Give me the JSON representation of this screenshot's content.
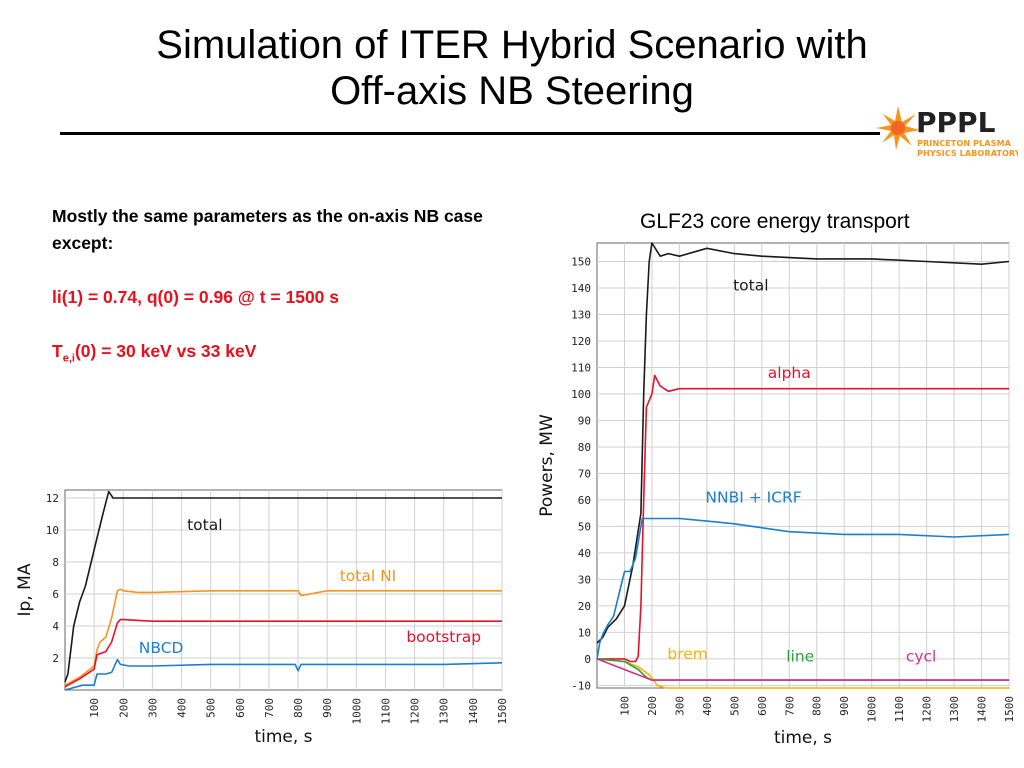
{
  "slide": {
    "title_line1": "Simulation of ITER Hybrid Scenario with",
    "title_line2": "Off-axis NB Steering",
    "logo": {
      "name": "PPPL",
      "line1": "PRINCETON PLASMA",
      "line2": "PHYSICS LABORATORY"
    },
    "notes": {
      "para1": "Mostly the same parameters as the on-axis NB case except:",
      "para2": "li(1) = 0.74, q(0) = 0.96 @ t = 1500 s",
      "para3_prefix": "T",
      "para3_sub": "e,i",
      "para3_rest": "(0) = 30 keV  vs 33 keV"
    },
    "right_chart_title": "GLF23 core energy transport"
  },
  "colors": {
    "black": "#1a1a1a",
    "orange": "#f7941d",
    "red": "#e8102a",
    "blue": "#1a7fd0",
    "yellow": "#f5b400",
    "green": "#2e9e3e",
    "magenta": "#d6308b",
    "text_red": "#e8101c"
  },
  "chart_data": [
    {
      "type": "line",
      "xlabel": "time, s",
      "ylabel": "Ip, MA",
      "xlim": [
        0,
        1500
      ],
      "ylim": [
        0,
        12.5
      ],
      "xticks": [
        "100",
        "200",
        "300",
        "400",
        "500",
        "600",
        "700",
        "800",
        "900",
        "1000",
        "1100",
        "1200",
        "1300",
        "1400",
        "1500"
      ],
      "yticks": [
        "2",
        "4",
        "6",
        "8",
        "10",
        "12"
      ],
      "grid": true,
      "series": [
        {
          "name": "total",
          "color_key": "black",
          "label_at": [
            480,
            10.0
          ],
          "x": [
            0,
            10,
            20,
            30,
            50,
            70,
            90,
            110,
            130,
            150,
            165,
            180,
            200,
            300,
            400,
            500,
            700,
            900,
            1100,
            1300,
            1500
          ],
          "y": [
            0.5,
            1.0,
            2.5,
            4.0,
            5.5,
            6.5,
            8.0,
            9.5,
            11.0,
            12.4,
            12.0,
            12.0,
            12.0,
            12.0,
            12.0,
            12.0,
            12.0,
            12.0,
            12.0,
            12.0,
            12.0
          ]
        },
        {
          "name": "total NI",
          "color_key": "orange",
          "label_at": [
            1040,
            6.8
          ],
          "x": [
            0,
            50,
            100,
            110,
            120,
            140,
            160,
            180,
            190,
            200,
            250,
            300,
            500,
            700,
            800,
            810,
            900,
            1100,
            1300,
            1500
          ],
          "y": [
            0.3,
            0.8,
            1.5,
            2.5,
            3.0,
            3.3,
            4.5,
            6.2,
            6.3,
            6.2,
            6.1,
            6.1,
            6.2,
            6.2,
            6.2,
            5.9,
            6.2,
            6.2,
            6.2,
            6.2
          ]
        },
        {
          "name": "bootstrap",
          "color_key": "red",
          "label_at": [
            1300,
            3.0
          ],
          "x": [
            0,
            50,
            100,
            110,
            140,
            160,
            180,
            190,
            200,
            300,
            500,
            700,
            900,
            1100,
            1300,
            1500
          ],
          "y": [
            0.2,
            0.7,
            1.3,
            2.2,
            2.4,
            3.0,
            4.2,
            4.4,
            4.4,
            4.3,
            4.3,
            4.3,
            4.3,
            4.3,
            4.3,
            4.3
          ]
        },
        {
          "name": "NBCD",
          "color_key": "blue",
          "label_at": [
            330,
            2.3
          ],
          "x": [
            0,
            60,
            100,
            110,
            140,
            160,
            180,
            190,
            220,
            300,
            500,
            700,
            790,
            800,
            810,
            900,
            1100,
            1300,
            1500
          ],
          "y": [
            0.0,
            0.3,
            0.3,
            1.0,
            1.0,
            1.1,
            1.9,
            1.6,
            1.5,
            1.5,
            1.6,
            1.6,
            1.6,
            1.2,
            1.6,
            1.6,
            1.6,
            1.6,
            1.7
          ]
        }
      ]
    },
    {
      "type": "line",
      "xlabel": "time, s",
      "ylabel": "Powers, MW",
      "xlim": [
        0,
        1500
      ],
      "ylim": [
        -11,
        157
      ],
      "xticks": [
        "100",
        "200",
        "300",
        "400",
        "500",
        "600",
        "700",
        "800",
        "900",
        "1000",
        "1100",
        "1200",
        "1300",
        "1400",
        "1500"
      ],
      "yticks": [
        "-10",
        "0",
        "10",
        "20",
        "30",
        "40",
        "50",
        "60",
        "70",
        "80",
        "90",
        "100",
        "110",
        "120",
        "130",
        "140",
        "150"
      ],
      "grid": true,
      "series": [
        {
          "name": "total",
          "color_key": "black",
          "label_at": [
            560,
            139
          ],
          "x": [
            0,
            20,
            40,
            70,
            100,
            130,
            160,
            170,
            180,
            190,
            200,
            230,
            260,
            300,
            400,
            500,
            600,
            800,
            1000,
            1200,
            1400,
            1500
          ],
          "y": [
            6,
            8,
            12,
            15,
            20,
            35,
            55,
            100,
            130,
            150,
            157,
            152,
            153,
            152,
            155,
            153,
            152,
            151,
            151,
            150,
            149,
            150
          ]
        },
        {
          "name": "alpha",
          "color_key": "red",
          "label_at": [
            700,
            106
          ],
          "x": [
            0,
            100,
            120,
            140,
            150,
            160,
            170,
            180,
            200,
            210,
            230,
            260,
            300,
            400,
            600,
            800,
            1000,
            1200,
            1400,
            1500
          ],
          "y": [
            0,
            0,
            -1,
            -1,
            1,
            20,
            60,
            95,
            100,
            107,
            103,
            101,
            102,
            102,
            102,
            102,
            102,
            102,
            102,
            102
          ]
        },
        {
          "name": "NNBI + ICRF",
          "color_key": "blue",
          "label_at": [
            570,
            59
          ],
          "x": [
            0,
            10,
            20,
            40,
            60,
            100,
            120,
            140,
            160,
            165,
            200,
            300,
            400,
            500,
            700,
            900,
            1100,
            1300,
            1500
          ],
          "y": [
            0,
            6,
            9,
            13,
            16,
            33,
            33,
            38,
            50,
            53,
            53,
            53,
            52,
            51,
            48,
            47,
            47,
            46,
            47
          ]
        },
        {
          "name": "brem",
          "color_key": "yellow",
          "label_at": [
            330,
            0
          ],
          "x": [
            0,
            100,
            150,
            190,
            220,
            250,
            400,
            800,
            1200,
            1500
          ],
          "y": [
            0,
            -1,
            -3,
            -6,
            -10,
            -11,
            -11,
            -11,
            -11,
            -11
          ]
        },
        {
          "name": "line",
          "color_key": "green",
          "label_at": [
            740,
            -1
          ],
          "x": [
            0,
            100,
            150,
            180,
            200,
            300,
            600,
            1000,
            1500
          ],
          "y": [
            0,
            -1,
            -4,
            -7,
            -8,
            -8,
            -8,
            -8,
            -8
          ]
        },
        {
          "name": "cycl",
          "color_key": "magenta",
          "label_at": [
            1180,
            -1
          ],
          "x": [
            0,
            200,
            300,
            600,
            1000,
            1500
          ],
          "y": [
            0,
            -8,
            -8,
            -8,
            -8,
            -8
          ]
        }
      ]
    }
  ]
}
